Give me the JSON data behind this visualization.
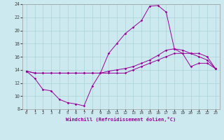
{
  "xlabel": "Windchill (Refroidissement éolien,°C)",
  "xlim": [
    -0.5,
    23.5
  ],
  "ylim": [
    8,
    24
  ],
  "xticks": [
    0,
    1,
    2,
    3,
    4,
    5,
    6,
    7,
    8,
    9,
    10,
    11,
    12,
    13,
    14,
    15,
    16,
    17,
    18,
    19,
    20,
    21,
    22,
    23
  ],
  "yticks": [
    8,
    10,
    12,
    14,
    16,
    18,
    20,
    22,
    24
  ],
  "bg_color": "#cce9f0",
  "grid_color": "#aad4d8",
  "line_color": "#990099",
  "line1_x": [
    0,
    1,
    2,
    3,
    4,
    5,
    6,
    7,
    8,
    9,
    10,
    11,
    12,
    13,
    14,
    15,
    16,
    17,
    18,
    19,
    20,
    21,
    22,
    23
  ],
  "line1_y": [
    13.8,
    13.5,
    13.5,
    13.5,
    13.5,
    13.5,
    13.5,
    13.5,
    13.5,
    13.5,
    13.8,
    14.0,
    14.2,
    14.5,
    15.0,
    15.5,
    16.2,
    17.0,
    17.2,
    17.0,
    16.5,
    16.0,
    15.5,
    14.2
  ],
  "line2_x": [
    0,
    1,
    2,
    3,
    4,
    5,
    6,
    7,
    8,
    9,
    10,
    11,
    12,
    13,
    14,
    15,
    16,
    17,
    18,
    19,
    20,
    21,
    22,
    23
  ],
  "line2_y": [
    13.8,
    13.5,
    13.5,
    13.5,
    13.5,
    13.5,
    13.5,
    13.5,
    13.5,
    13.5,
    13.5,
    13.5,
    13.5,
    14.0,
    14.5,
    15.0,
    15.5,
    16.0,
    16.5,
    16.5,
    16.5,
    16.5,
    16.0,
    14.2
  ],
  "line3_x": [
    0,
    1,
    2,
    3,
    4,
    5,
    6,
    7,
    8,
    9,
    10,
    11,
    12,
    13,
    14,
    15,
    16,
    17,
    18,
    19,
    20,
    21,
    22,
    23
  ],
  "line3_y": [
    13.8,
    12.7,
    11.0,
    10.8,
    9.5,
    9.0,
    8.8,
    8.5,
    11.5,
    13.5,
    16.5,
    18.0,
    19.5,
    20.5,
    21.5,
    23.7,
    23.8,
    22.8,
    17.2,
    16.5,
    14.5,
    15.0,
    15.0,
    14.2
  ]
}
